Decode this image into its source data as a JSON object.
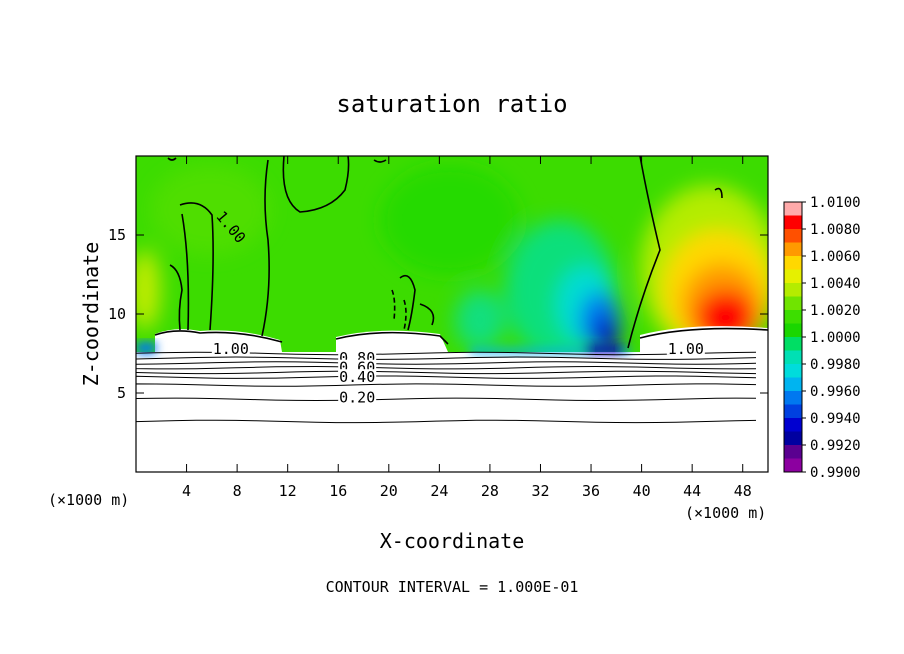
{
  "chart_data": {
    "type": "heatmap",
    "title": "saturation ratio",
    "xlabel": "X-coordinate",
    "ylabel": "Z-coordinate",
    "x_unit": "(×1000 m)",
    "x_tick_labels": [
      "4",
      "8",
      "12",
      "16",
      "20",
      "24",
      "28",
      "32",
      "36",
      "40",
      "44",
      "48"
    ],
    "y_tick_labels": [
      "5",
      "10",
      "15"
    ],
    "xlim": [
      0,
      50
    ],
    "ylim": [
      0,
      20
    ],
    "colorbar": {
      "labels": [
        "1.0100",
        "1.0080",
        "1.0060",
        "1.0040",
        "1.0020",
        "1.0000",
        "0.9980",
        "0.9960",
        "0.9940",
        "0.9920",
        "0.9900"
      ],
      "colors": [
        "#ffaaaa",
        "#ff0000",
        "#ff5000",
        "#ff9a00",
        "#ffd800",
        "#e6f000",
        "#b4ec00",
        "#70e400",
        "#3dde00",
        "#1ad600",
        "#00de64",
        "#00e0b4",
        "#00dcdc",
        "#00b4f0",
        "#0078f0",
        "#0040e0",
        "#0000d0",
        "#0000a0",
        "#5a0090",
        "#8c00a0"
      ]
    },
    "contour_labels": [
      {
        "text": "1.00",
        "x": 7.5,
        "z": 15.5,
        "angle": 50
      },
      {
        "text": "1.00",
        "x": 7.5,
        "z": 7.8
      },
      {
        "text": "1.00",
        "x": 43.5,
        "z": 7.8
      },
      {
        "text": "0.80",
        "x": 17.5,
        "z": 7.2
      },
      {
        "text": "0.60",
        "x": 17.5,
        "z": 6.6
      },
      {
        "text": "0.40",
        "x": 17.5,
        "z": 6.0
      },
      {
        "text": "0.20",
        "x": 17.5,
        "z": 4.7
      }
    ],
    "contour_line_z": [
      3.2,
      4.6,
      5.5,
      6.0,
      6.3,
      6.6,
      6.9,
      7.2,
      7.5
    ],
    "footer": "CONTOUR INTERVAL = 1.000E-01"
  }
}
